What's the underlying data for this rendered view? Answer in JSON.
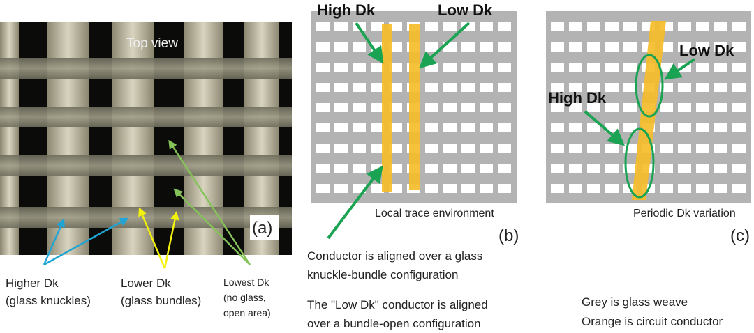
{
  "panel_a": {
    "photo_label": "Top view",
    "panel_tag": "(a)",
    "annotations": {
      "higher": [
        "Higher Dk",
        "(glass knuckles)"
      ],
      "lower": [
        "Lower Dk",
        "(glass bundles)"
      ],
      "lowest": [
        "Lowest Dk",
        "(no glass,",
        "open area)"
      ]
    },
    "arrow_colors": {
      "higher": "#1ea5d6",
      "lower": "#f2f20a",
      "lowest": "#86c25a"
    }
  },
  "panel_b": {
    "high_label": "High Dk",
    "low_label": "Low Dk",
    "caption": "Local trace environment",
    "panel_tag": "(b)",
    "notes": [
      "Conductor is aligned over a glass",
      "knuckle-bundle configuration",
      "The \"Low Dk\" conductor is aligned",
      "over a bundle-open configuration"
    ]
  },
  "panel_c": {
    "high_label": "High Dk",
    "low_label": "Low Dk",
    "caption": "Periodic Dk variation",
    "panel_tag": "(c)",
    "legend": [
      "Grey is glass weave",
      "Orange is circuit conductor"
    ]
  },
  "colors": {
    "glass": "#b3b3b3",
    "conductor": "#f5bd2a",
    "arrow": "#1aa352"
  }
}
